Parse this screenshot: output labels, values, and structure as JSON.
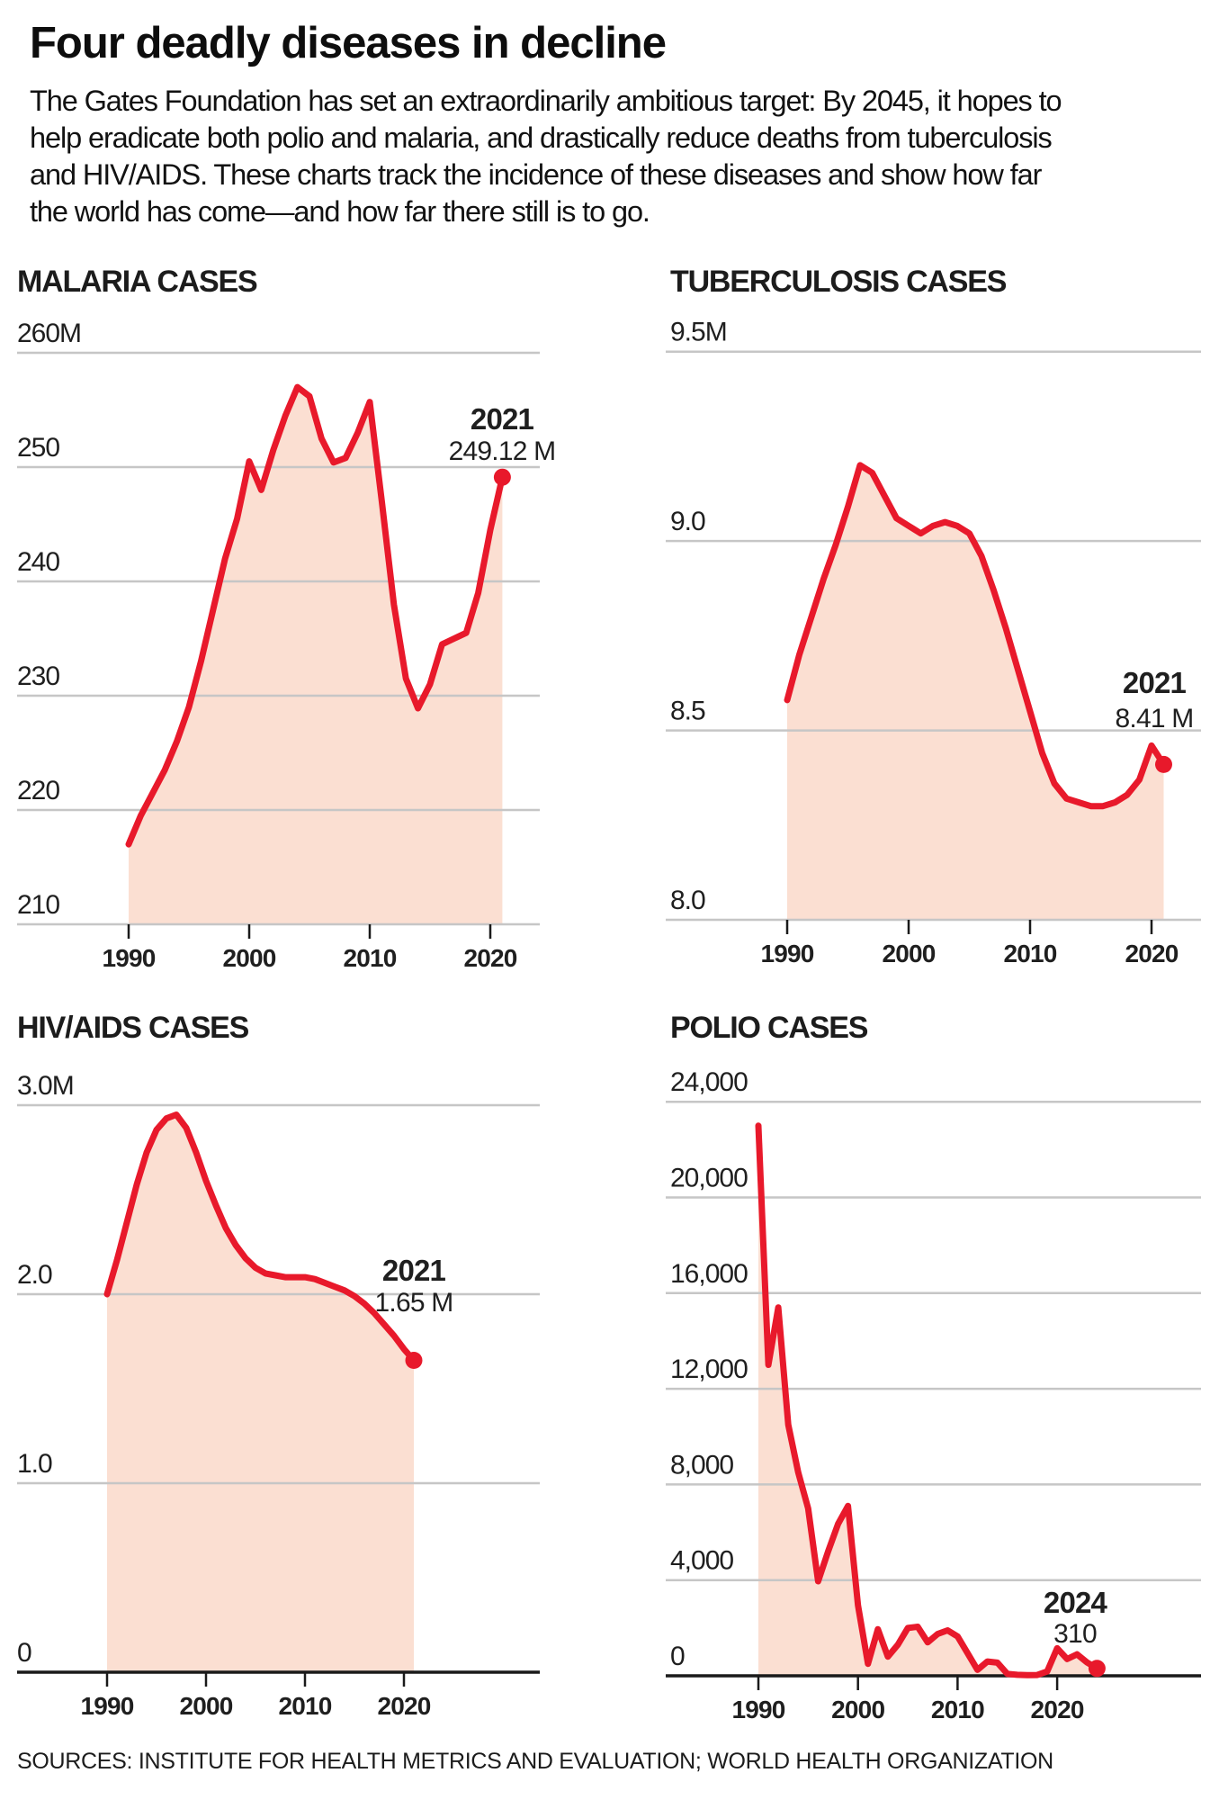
{
  "header": {
    "title": "Four deadly diseases in decline",
    "intro_lines": [
      "The Gates Foundation has set an extraordinarily ambitious target: By 2045, it hopes to",
      "help eradicate both polio and malaria, and drastically reduce deaths from tuberculosis",
      "and HIV/AIDS. These charts track the incidence of these diseases and show how far",
      "the world has come—and how far there still is to go."
    ]
  },
  "footer": {
    "source": "SOURCES: INSTITUTE FOR HEALTH METRICS AND EVALUATION; WORLD HEALTH ORGANIZATION"
  },
  "colors": {
    "accent": "#e8192b",
    "area": "#fbdfd2",
    "grid": "#c6c6c6",
    "ink": "#1a1a1a",
    "text": "#111111"
  },
  "chart_data": [
    {
      "id": "malaria",
      "type": "area",
      "title": "MALARIA CASES",
      "year_start": 1990,
      "year_end": 2021,
      "values": [
        217,
        219.5,
        221.5,
        223.5,
        226,
        229,
        233,
        237.5,
        242,
        245.5,
        250.5,
        248,
        251.5,
        254.5,
        257,
        256.2,
        252.5,
        250.4,
        250.8,
        253,
        255.7,
        247,
        238,
        231.5,
        228.9,
        231,
        234.5,
        235,
        235.5,
        239,
        244.5,
        249.12
      ],
      "ylim": [
        210,
        260
      ],
      "yticks": [
        {
          "label": "260M",
          "value": 260
        },
        {
          "label": "250",
          "value": 250
        },
        {
          "label": "240",
          "value": 240
        },
        {
          "label": "230",
          "value": 230
        },
        {
          "label": "220",
          "value": 220
        },
        {
          "label": "210",
          "value": 210
        }
      ],
      "xticks": [
        {
          "label": "1990",
          "value": 1990
        },
        {
          "label": "2000",
          "value": 2000
        },
        {
          "label": "2010",
          "value": 2010
        },
        {
          "label": "2020",
          "value": 2020
        }
      ],
      "annotation": {
        "year": "2021",
        "value_text": "249.12 M",
        "value": 249.12
      }
    },
    {
      "id": "tb",
      "type": "area",
      "title": "TUBERCULOSIS CASES",
      "year_start": 1990,
      "year_end": 2021,
      "values": [
        8.58,
        8.7,
        8.8,
        8.9,
        8.99,
        9.09,
        9.2,
        9.18,
        9.12,
        9.06,
        9.04,
        9.02,
        9.04,
        9.05,
        9.04,
        9.02,
        8.96,
        8.87,
        8.77,
        8.66,
        8.55,
        8.44,
        8.36,
        8.32,
        8.31,
        8.3,
        8.3,
        8.31,
        8.33,
        8.37,
        8.46,
        8.41
      ],
      "ylim": [
        8.0,
        9.5
      ],
      "yticks": [
        {
          "label": "9.5M",
          "value": 9.5
        },
        {
          "label": "9.0",
          "value": 9.0
        },
        {
          "label": "8.5",
          "value": 8.5
        },
        {
          "label": "8.0",
          "value": 8.0
        }
      ],
      "xticks": [
        {
          "label": "1990",
          "value": 1990
        },
        {
          "label": "2000",
          "value": 2000
        },
        {
          "label": "2010",
          "value": 2010
        },
        {
          "label": "2020",
          "value": 2020
        }
      ],
      "annotation": {
        "year": "2021",
        "value_text": "8.41 M",
        "value": 8.41
      }
    },
    {
      "id": "hiv",
      "type": "area",
      "title": "HIV/AIDS CASES",
      "year_start": 1990,
      "year_end": 2021,
      "values": [
        2.0,
        2.18,
        2.38,
        2.58,
        2.75,
        2.87,
        2.93,
        2.95,
        2.88,
        2.75,
        2.6,
        2.47,
        2.35,
        2.26,
        2.19,
        2.14,
        2.11,
        2.1,
        2.09,
        2.09,
        2.09,
        2.08,
        2.06,
        2.04,
        2.02,
        1.99,
        1.95,
        1.9,
        1.84,
        1.78,
        1.71,
        1.65
      ],
      "ylim": [
        0,
        3.0
      ],
      "yticks": [
        {
          "label": "3.0M",
          "value": 3.0
        },
        {
          "label": "2.0",
          "value": 2.0
        },
        {
          "label": "1.0",
          "value": 1.0
        },
        {
          "label": "0",
          "value": 0
        }
      ],
      "xticks": [
        {
          "label": "1990",
          "value": 1990
        },
        {
          "label": "2000",
          "value": 2000
        },
        {
          "label": "2010",
          "value": 2010
        },
        {
          "label": "2020",
          "value": 2020
        }
      ],
      "annotation": {
        "year": "2021",
        "value_text": "1.65 M",
        "value": 1.65
      }
    },
    {
      "id": "polio",
      "type": "area",
      "title": "POLIO CASES",
      "year_start": 1990,
      "year_end": 2024,
      "values": [
        23000,
        13000,
        15400,
        10500,
        8500,
        7000,
        3950,
        5200,
        6350,
        7100,
        2950,
        500,
        1950,
        800,
        1300,
        2000,
        2050,
        1400,
        1750,
        1900,
        1650,
        950,
        250,
        600,
        550,
        80,
        40,
        25,
        35,
        180,
        1150,
        700,
        900,
        560,
        310
      ],
      "ylim": [
        0,
        24000
      ],
      "yticks": [
        {
          "label": "24,000",
          "value": 24000
        },
        {
          "label": "20,000",
          "value": 20000
        },
        {
          "label": "16,000",
          "value": 16000
        },
        {
          "label": "12,000",
          "value": 12000
        },
        {
          "label": "8,000",
          "value": 8000
        },
        {
          "label": "4,000",
          "value": 4000
        },
        {
          "label": "0",
          "value": 0
        }
      ],
      "xticks": [
        {
          "label": "1990",
          "value": 1990
        },
        {
          "label": "2000",
          "value": 2000
        },
        {
          "label": "2010",
          "value": 2010
        },
        {
          "label": "2020",
          "value": 2020
        }
      ],
      "annotation": {
        "year": "2024",
        "value_text": "310",
        "value": 310
      }
    }
  ]
}
